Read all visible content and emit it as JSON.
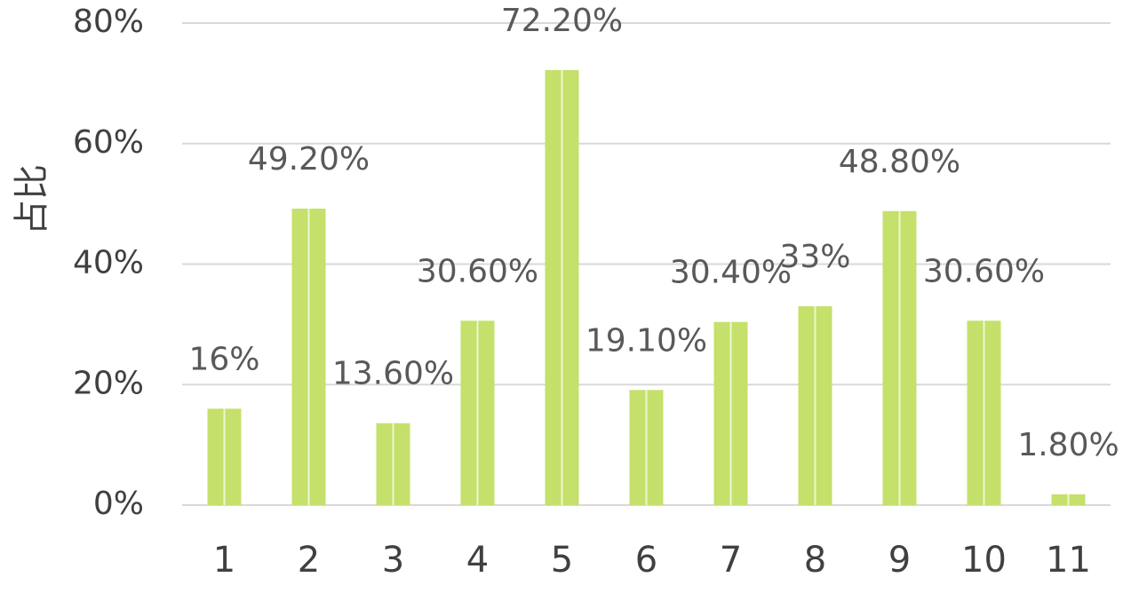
{
  "chart_data": {
    "type": "bar",
    "y_label": "占比",
    "categories": [
      "1",
      "2",
      "3",
      "4",
      "5",
      "6",
      "7",
      "8",
      "9",
      "10",
      "11"
    ],
    "values": [
      16,
      49.2,
      13.6,
      30.6,
      72.2,
      19.1,
      30.4,
      33,
      48.8,
      30.6,
      1.8
    ],
    "value_labels": [
      "16%",
      "49.20%",
      "13.60%",
      "30.60%",
      "72.20%",
      "19.10%",
      "30.40%",
      "33%",
      "48.80%",
      "30.60%",
      "1.80%"
    ],
    "color": "#c5e06b",
    "ylim": [
      0,
      80
    ],
    "yticks": [
      {
        "value": 0,
        "label": "0%"
      },
      {
        "value": 20,
        "label": "20%"
      },
      {
        "value": 40,
        "label": "40%"
      },
      {
        "value": 60,
        "label": "60%"
      },
      {
        "value": 80,
        "label": "80%"
      }
    ],
    "grid": true
  }
}
